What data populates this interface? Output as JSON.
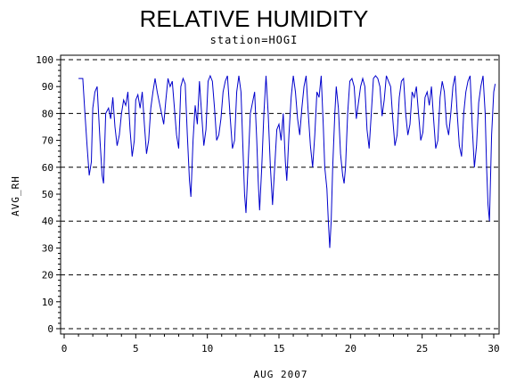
{
  "chart_data": {
    "type": "line",
    "title": "RELATIVE HUMIDITY",
    "subtitle": "station=HOGI",
    "xlabel": "AUG 2007",
    "ylabel": "AVG_RH",
    "xlim": [
      0,
      30
    ],
    "ylim": [
      0,
      100
    ],
    "x_ticks": [
      0,
      5,
      10,
      15,
      20,
      25,
      30
    ],
    "y_ticks": [
      0,
      10,
      20,
      30,
      40,
      50,
      60,
      70,
      80,
      90,
      100
    ],
    "reference_lines": [
      0,
      20,
      40,
      60,
      80,
      100
    ],
    "grid": false,
    "legend": "none",
    "colors": {
      "line": "#0000cc",
      "axis": "#000000",
      "refline": "#000000"
    },
    "series": [
      {
        "values": [
          [
            1.0,
            93
          ],
          [
            1.3,
            93
          ],
          [
            1.45,
            80
          ],
          [
            1.6,
            68
          ],
          [
            1.75,
            57
          ],
          [
            1.9,
            62
          ],
          [
            2.0,
            82
          ],
          [
            2.15,
            88
          ],
          [
            2.3,
            90
          ],
          [
            2.5,
            70
          ],
          [
            2.65,
            57
          ],
          [
            2.75,
            54
          ],
          [
            2.9,
            80
          ],
          [
            3.1,
            82
          ],
          [
            3.25,
            78
          ],
          [
            3.4,
            86
          ],
          [
            3.55,
            75
          ],
          [
            3.7,
            68
          ],
          [
            3.85,
            72
          ],
          [
            4.0,
            80
          ],
          [
            4.15,
            85
          ],
          [
            4.3,
            83
          ],
          [
            4.45,
            88
          ],
          [
            4.6,
            74
          ],
          [
            4.75,
            64
          ],
          [
            4.9,
            70
          ],
          [
            5.0,
            85
          ],
          [
            5.15,
            87
          ],
          [
            5.3,
            82
          ],
          [
            5.45,
            88
          ],
          [
            5.6,
            76
          ],
          [
            5.75,
            65
          ],
          [
            5.9,
            70
          ],
          [
            6.05,
            82
          ],
          [
            6.2,
            88
          ],
          [
            6.35,
            93
          ],
          [
            6.5,
            88
          ],
          [
            6.65,
            84
          ],
          [
            6.8,
            80
          ],
          [
            6.95,
            76
          ],
          [
            7.1,
            85
          ],
          [
            7.25,
            93
          ],
          [
            7.4,
            90
          ],
          [
            7.55,
            92
          ],
          [
            7.7,
            82
          ],
          [
            7.85,
            72
          ],
          [
            8.0,
            67
          ],
          [
            8.15,
            90
          ],
          [
            8.3,
            93
          ],
          [
            8.45,
            91
          ],
          [
            8.6,
            72
          ],
          [
            8.75,
            55
          ],
          [
            8.85,
            49
          ],
          [
            9.0,
            70
          ],
          [
            9.15,
            83
          ],
          [
            9.3,
            76
          ],
          [
            9.45,
            92
          ],
          [
            9.6,
            80
          ],
          [
            9.75,
            68
          ],
          [
            9.9,
            74
          ],
          [
            10.05,
            92
          ],
          [
            10.2,
            94
          ],
          [
            10.35,
            92
          ],
          [
            10.5,
            82
          ],
          [
            10.65,
            70
          ],
          [
            10.8,
            72
          ],
          [
            10.95,
            78
          ],
          [
            11.1,
            88
          ],
          [
            11.25,
            92
          ],
          [
            11.4,
            94
          ],
          [
            11.6,
            78
          ],
          [
            11.75,
            67
          ],
          [
            11.9,
            70
          ],
          [
            12.05,
            88
          ],
          [
            12.2,
            94
          ],
          [
            12.35,
            88
          ],
          [
            12.5,
            65
          ],
          [
            12.6,
            50
          ],
          [
            12.7,
            43
          ],
          [
            12.85,
            62
          ],
          [
            13.0,
            80
          ],
          [
            13.15,
            84
          ],
          [
            13.3,
            88
          ],
          [
            13.45,
            70
          ],
          [
            13.55,
            55
          ],
          [
            13.65,
            44
          ],
          [
            13.8,
            60
          ],
          [
            13.95,
            80
          ],
          [
            14.1,
            94
          ],
          [
            14.25,
            80
          ],
          [
            14.4,
            60
          ],
          [
            14.55,
            46
          ],
          [
            14.7,
            60
          ],
          [
            14.85,
            74
          ],
          [
            15.0,
            76
          ],
          [
            15.15,
            70
          ],
          [
            15.3,
            80
          ],
          [
            15.45,
            62
          ],
          [
            15.55,
            55
          ],
          [
            15.7,
            72
          ],
          [
            15.85,
            86
          ],
          [
            16.0,
            94
          ],
          [
            16.15,
            88
          ],
          [
            16.3,
            78
          ],
          [
            16.45,
            72
          ],
          [
            16.6,
            82
          ],
          [
            16.75,
            90
          ],
          [
            16.9,
            94
          ],
          [
            17.05,
            80
          ],
          [
            17.2,
            68
          ],
          [
            17.35,
            60
          ],
          [
            17.5,
            72
          ],
          [
            17.65,
            88
          ],
          [
            17.8,
            86
          ],
          [
            17.95,
            94
          ],
          [
            18.1,
            75
          ],
          [
            18.2,
            60
          ],
          [
            18.35,
            52
          ],
          [
            18.45,
            40
          ],
          [
            18.55,
            30
          ],
          [
            18.65,
            40
          ],
          [
            18.75,
            60
          ],
          [
            18.9,
            80
          ],
          [
            19.0,
            90
          ],
          [
            19.15,
            82
          ],
          [
            19.3,
            65
          ],
          [
            19.45,
            57
          ],
          [
            19.55,
            54
          ],
          [
            19.65,
            60
          ],
          [
            19.8,
            80
          ],
          [
            19.95,
            92
          ],
          [
            20.1,
            93
          ],
          [
            20.25,
            90
          ],
          [
            20.4,
            78
          ],
          [
            20.55,
            84
          ],
          [
            20.7,
            90
          ],
          [
            20.85,
            93
          ],
          [
            21.0,
            90
          ],
          [
            21.15,
            74
          ],
          [
            21.3,
            67
          ],
          [
            21.45,
            80
          ],
          [
            21.6,
            93
          ],
          [
            21.75,
            94
          ],
          [
            21.9,
            93
          ],
          [
            22.05,
            90
          ],
          [
            22.2,
            79
          ],
          [
            22.35,
            85
          ],
          [
            22.5,
            94
          ],
          [
            22.65,
            92
          ],
          [
            22.8,
            90
          ],
          [
            22.95,
            78
          ],
          [
            23.1,
            68
          ],
          [
            23.25,
            72
          ],
          [
            23.4,
            86
          ],
          [
            23.55,
            92
          ],
          [
            23.7,
            93
          ],
          [
            23.85,
            80
          ],
          [
            24.0,
            72
          ],
          [
            24.15,
            76
          ],
          [
            24.3,
            88
          ],
          [
            24.45,
            86
          ],
          [
            24.6,
            90
          ],
          [
            24.75,
            80
          ],
          [
            24.9,
            70
          ],
          [
            25.05,
            73
          ],
          [
            25.2,
            86
          ],
          [
            25.35,
            88
          ],
          [
            25.5,
            83
          ],
          [
            25.65,
            90
          ],
          [
            25.8,
            78
          ],
          [
            25.95,
            67
          ],
          [
            26.1,
            70
          ],
          [
            26.25,
            86
          ],
          [
            26.4,
            92
          ],
          [
            26.55,
            88
          ],
          [
            26.7,
            76
          ],
          [
            26.85,
            72
          ],
          [
            27.0,
            80
          ],
          [
            27.15,
            90
          ],
          [
            27.3,
            94
          ],
          [
            27.45,
            80
          ],
          [
            27.6,
            68
          ],
          [
            27.75,
            64
          ],
          [
            27.9,
            80
          ],
          [
            28.05,
            88
          ],
          [
            28.2,
            92
          ],
          [
            28.35,
            94
          ],
          [
            28.5,
            75
          ],
          [
            28.65,
            60
          ],
          [
            28.8,
            68
          ],
          [
            28.95,
            84
          ],
          [
            29.1,
            90
          ],
          [
            29.25,
            94
          ],
          [
            29.4,
            80
          ],
          [
            29.5,
            60
          ],
          [
            29.6,
            46
          ],
          [
            29.7,
            40
          ],
          [
            29.85,
            72
          ],
          [
            30.0,
            88
          ],
          [
            30.1,
            91
          ]
        ]
      }
    ]
  }
}
